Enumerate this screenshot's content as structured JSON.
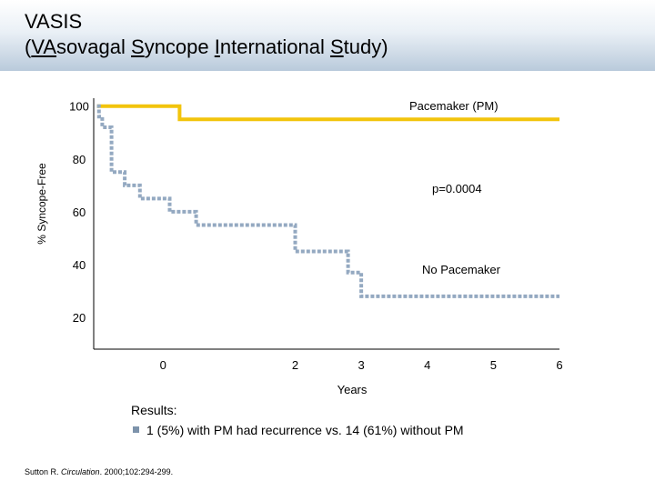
{
  "slide": {
    "title_line1": "VASIS",
    "title_paren_open": "(",
    "title_w1_u": "VA",
    "title_w1_rest": "sovagal ",
    "title_w2_u": "S",
    "title_w2_rest": "yncope ",
    "title_w3_u": "I",
    "title_w3_rest": "nternational ",
    "title_w4_u": "S",
    "title_w4_rest": "tudy",
    "title_paren_close": ")"
  },
  "results": {
    "heading": "Results:",
    "bullet": "1 (5%) with PM had recurrence vs. 14 (61%) without PM"
  },
  "citation": {
    "authors": "Sutton R. ",
    "journal": "Circulation",
    "details": ". 2000;102:294-299."
  },
  "chart_data": {
    "type": "line",
    "title": "",
    "xlabel": "Years",
    "ylabel": "% Syncope-Free",
    "xlim": [
      -1.05,
      6
    ],
    "ylim": [
      8,
      103
    ],
    "x_tick_labels": [
      "0",
      "2",
      "3",
      "4",
      "5",
      "6"
    ],
    "x_tick_values": [
      0,
      2,
      3,
      4,
      5,
      6
    ],
    "y_tick_labels": [
      "20",
      "40",
      "60",
      "80",
      "100"
    ],
    "y_tick_values": [
      20,
      40,
      60,
      80,
      100
    ],
    "grid": false,
    "annotations": {
      "pacemaker": "Pacemaker (PM)",
      "pvalue": "p=0.0004",
      "no_pacemaker": "No Pacemaker"
    },
    "series": [
      {
        "name": "Pacemaker (PM)",
        "color": "#f2c40c",
        "style": "solid",
        "x": [
          -1.0,
          0.25,
          0.25,
          6.0
        ],
        "y": [
          100,
          100,
          95,
          95
        ]
      },
      {
        "name": "No Pacemaker",
        "color": "#94a9c1",
        "style": "dotted",
        "x": [
          -1.0,
          -0.97,
          -0.97,
          -0.92,
          -0.92,
          -0.78,
          -0.78,
          -0.58,
          -0.58,
          -0.35,
          -0.35,
          0.1,
          0.1,
          0.5,
          0.5,
          2.0,
          2.0,
          2.8,
          2.8,
          3.0,
          3.0,
          6.0
        ],
        "y": [
          100,
          100,
          96,
          96,
          92,
          92,
          75,
          75,
          70,
          70,
          65,
          65,
          60,
          60,
          55,
          55,
          45,
          45,
          37,
          37,
          28,
          28
        ]
      }
    ]
  }
}
